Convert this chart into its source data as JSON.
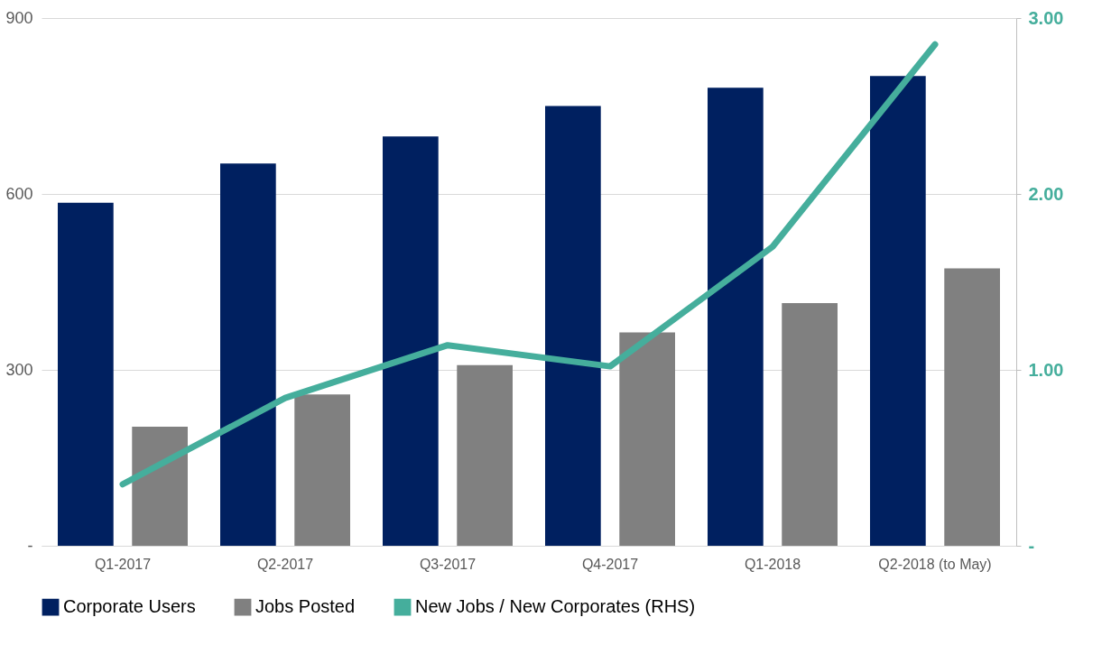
{
  "chart_data": {
    "type": "bar",
    "categories": [
      "Q1-2017",
      "Q2-2017",
      "Q3-2017",
      "Q4-2017",
      "Q1-2018",
      "Q2-2018  (to May)"
    ],
    "series": [
      {
        "name": "Corporate Users",
        "color": "#002060",
        "values": [
          585,
          652,
          698,
          750,
          781,
          801
        ]
      },
      {
        "name": "Jobs Posted",
        "color": "#808080",
        "values": [
          203,
          258,
          308,
          364,
          414,
          473
        ]
      },
      {
        "name": "New Jobs / New Corporates (RHS)",
        "type": "line",
        "axis": "y2",
        "color": "#45ae9c",
        "values": [
          0.35,
          0.84,
          1.14,
          1.02,
          1.7,
          2.85
        ]
      }
    ],
    "ylim": [
      0,
      900
    ],
    "yticks": [
      {
        "value": 0,
        "label": "-"
      },
      300,
      600,
      900
    ],
    "y2lim": [
      0,
      3
    ],
    "y2ticks": [
      {
        "value": 0,
        "label": "-"
      },
      {
        "value": 1,
        "label": "1.00"
      },
      {
        "value": 2,
        "label": "2.00"
      },
      {
        "value": 3,
        "label": "3.00"
      }
    ],
    "grid": "y",
    "legend": "bottom",
    "line_style": "solid",
    "marker": "none"
  }
}
